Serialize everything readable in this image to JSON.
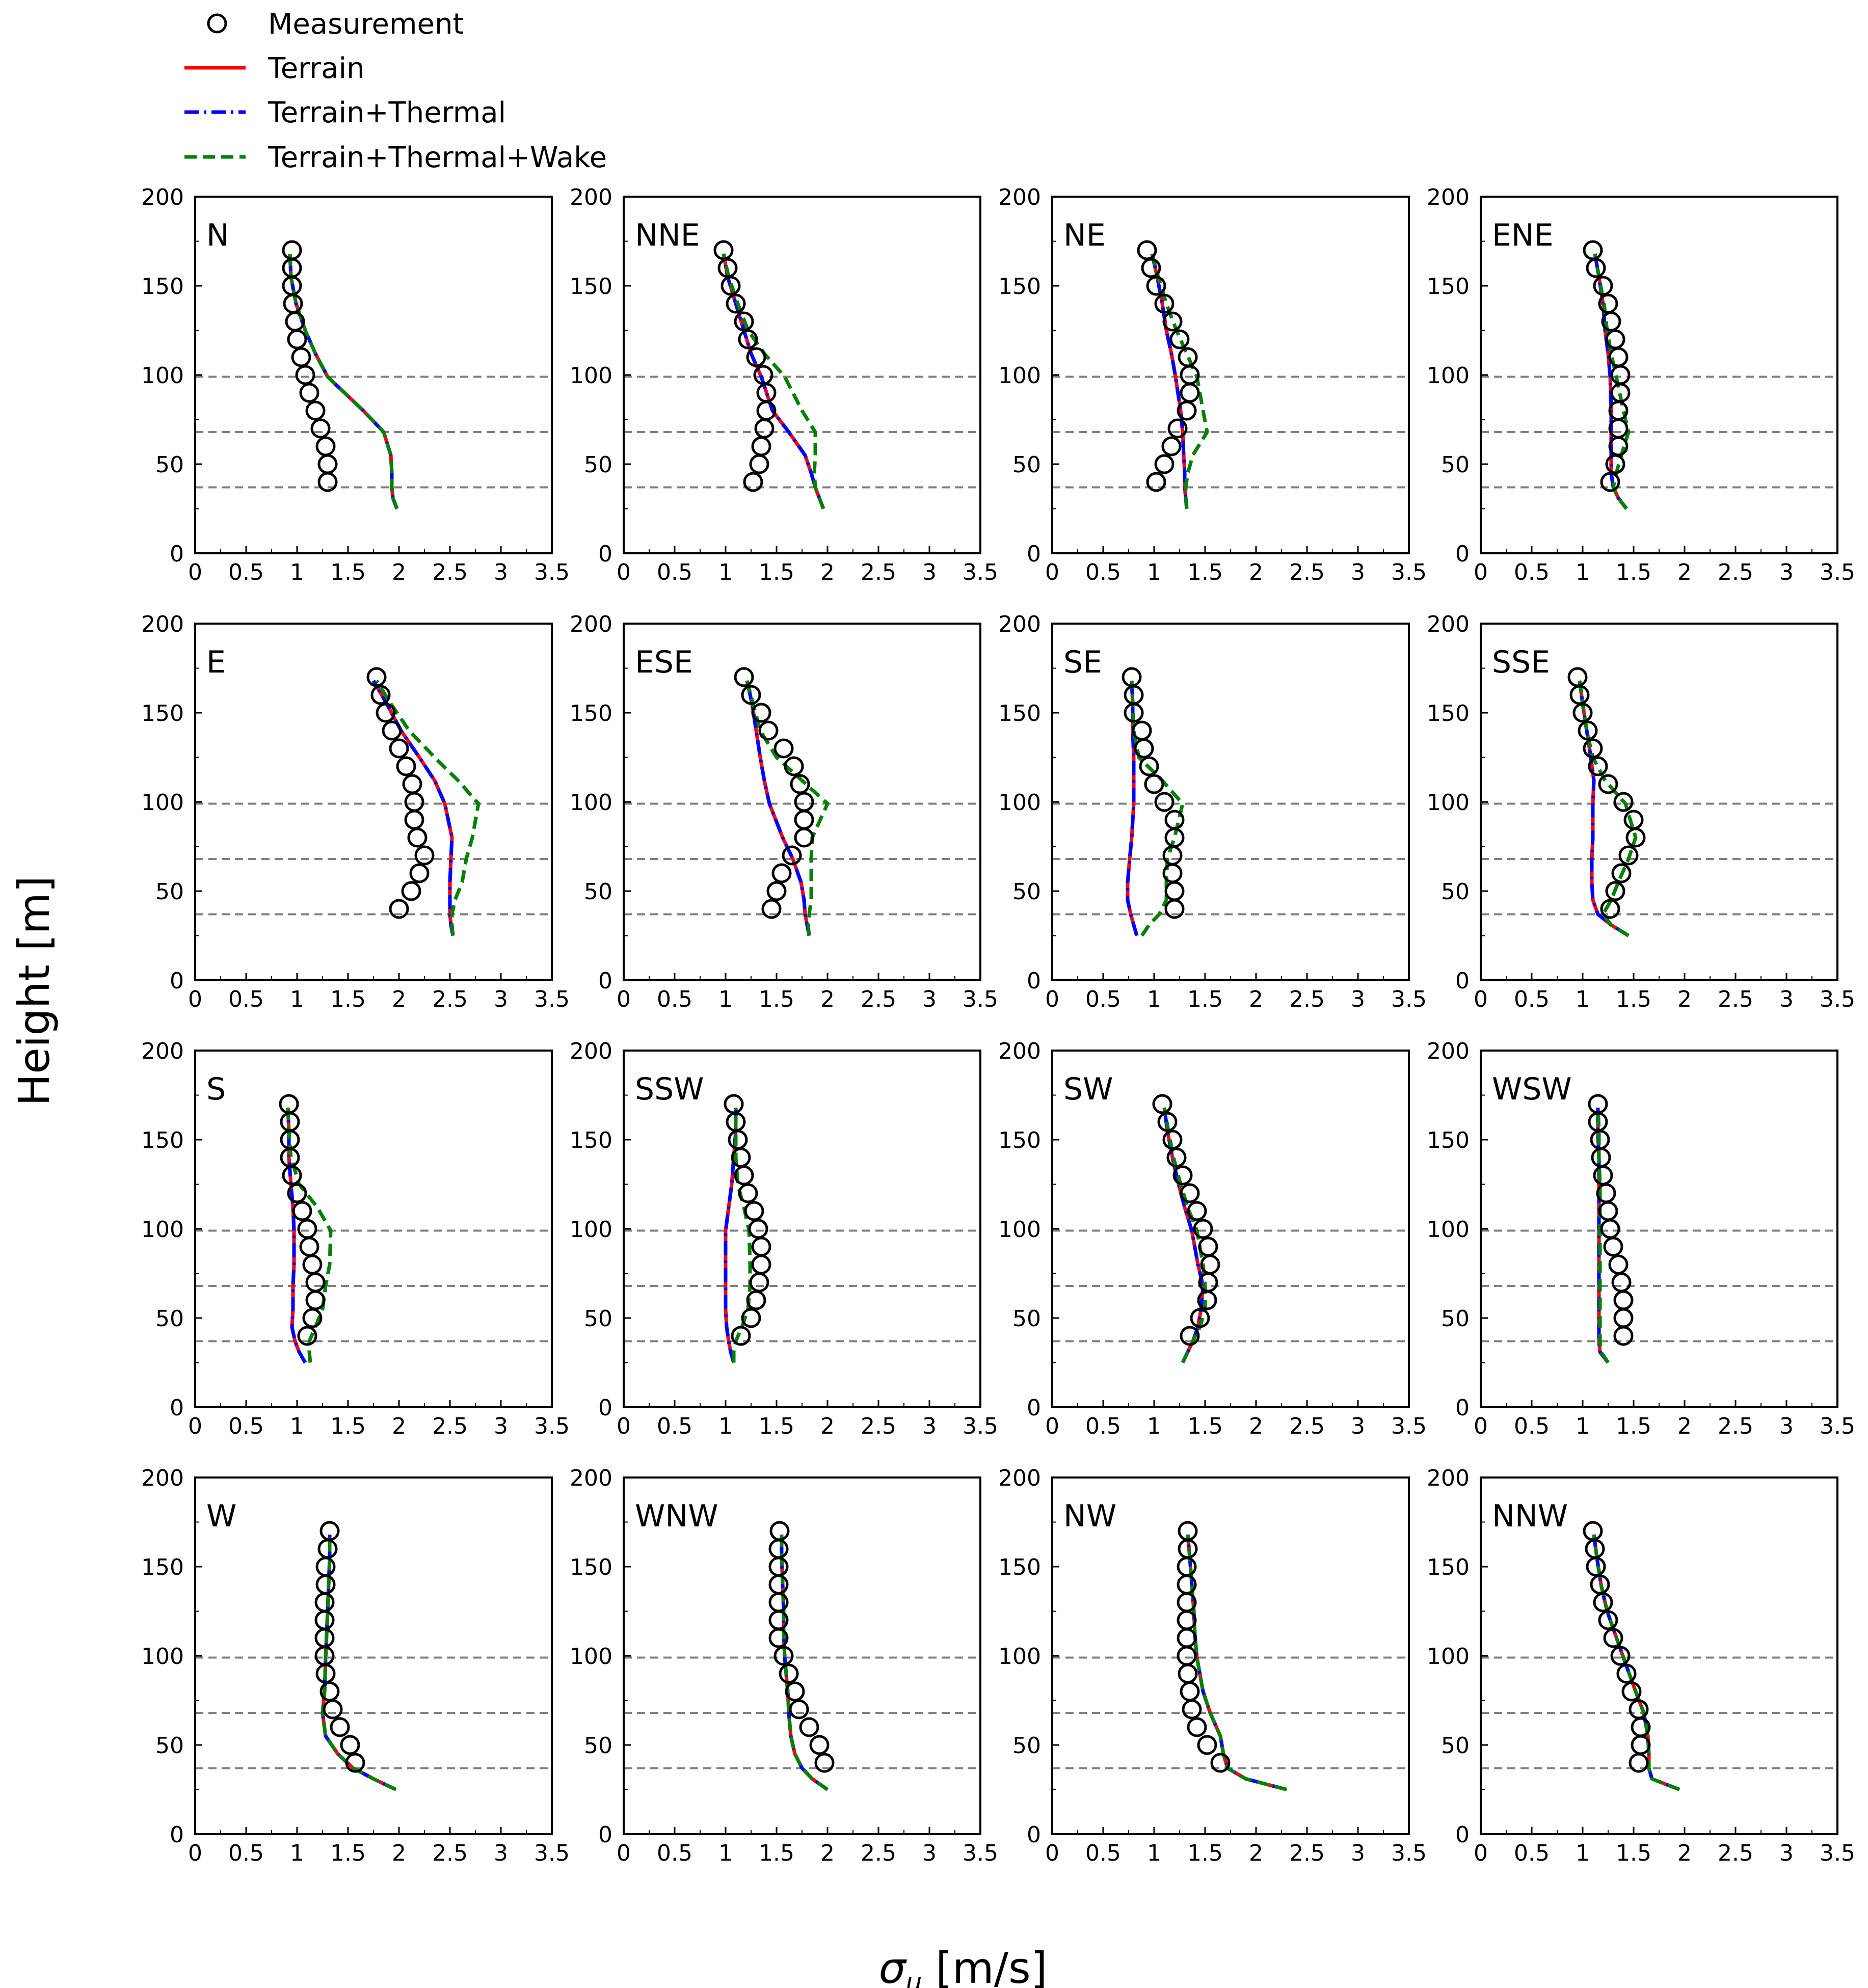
{
  "chart_data": {
    "type": "line",
    "xlabel": "σu [m/s]",
    "ylabel": "Height [m]",
    "xlim": [
      0,
      3.5
    ],
    "ylim": [
      0,
      200
    ],
    "xticks": [
      "0",
      "0.5",
      "1",
      "1.5",
      "2",
      "2.5",
      "3",
      "3.5"
    ],
    "yticks": [
      "0",
      "50",
      "100",
      "150",
      "200"
    ],
    "reference_heights": [
      37,
      68,
      99
    ],
    "legend": {
      "placement": "top-left",
      "entries": [
        {
          "key": "meas",
          "label": "Measurement",
          "style": "open-circle",
          "color": "#000000"
        },
        {
          "key": "terrain",
          "label": "Terrain",
          "style": "solid",
          "color": "#ff0000"
        },
        {
          "key": "thermal",
          "label": "Terrain+Thermal",
          "style": "dash-dot",
          "color": "#0000ff"
        },
        {
          "key": "wake",
          "label": "Terrain+Thermal+Wake",
          "style": "dashed",
          "color": "#008000"
        }
      ]
    },
    "meas_heights": [
      40,
      50,
      60,
      70,
      80,
      90,
      100,
      110,
      120,
      130,
      140,
      150,
      160,
      170
    ],
    "sim_heights": [
      25,
      31,
      37,
      45,
      55,
      68,
      80,
      99,
      112,
      125,
      140,
      155,
      168
    ],
    "panels": [
      {
        "label": "N",
        "meas": [
          1.3,
          1.3,
          1.28,
          1.23,
          1.18,
          1.12,
          1.08,
          1.04,
          1.0,
          0.98,
          0.96,
          0.95,
          0.95,
          0.95
        ],
        "terrain": [
          1.98,
          1.94,
          1.93,
          1.93,
          1.92,
          1.85,
          1.65,
          1.3,
          1.18,
          1.08,
          0.99,
          0.94,
          0.93
        ],
        "thermal": [
          1.98,
          1.94,
          1.93,
          1.93,
          1.92,
          1.85,
          1.65,
          1.3,
          1.18,
          1.08,
          0.99,
          0.94,
          0.93
        ],
        "wake": [
          1.98,
          1.94,
          1.93,
          1.93,
          1.92,
          1.85,
          1.65,
          1.3,
          1.18,
          1.08,
          0.99,
          0.94,
          0.93
        ]
      },
      {
        "label": "NNE",
        "meas": [
          1.27,
          1.33,
          1.35,
          1.38,
          1.4,
          1.4,
          1.37,
          1.3,
          1.22,
          1.18,
          1.1,
          1.05,
          1.02,
          0.98
        ],
        "terrain": [
          1.96,
          1.92,
          1.88,
          1.84,
          1.78,
          1.62,
          1.46,
          1.35,
          1.25,
          1.18,
          1.1,
          1.02,
          0.98
        ],
        "thermal": [
          1.96,
          1.92,
          1.88,
          1.84,
          1.78,
          1.62,
          1.46,
          1.35,
          1.25,
          1.18,
          1.1,
          1.02,
          0.98
        ],
        "wake": [
          1.96,
          1.92,
          1.88,
          1.87,
          1.88,
          1.88,
          1.75,
          1.58,
          1.38,
          1.22,
          1.12,
          1.03,
          0.98
        ]
      },
      {
        "label": "NE",
        "meas": [
          1.02,
          1.1,
          1.17,
          1.23,
          1.32,
          1.35,
          1.35,
          1.33,
          1.25,
          1.18,
          1.1,
          1.02,
          0.97,
          0.93
        ],
        "terrain": [
          1.32,
          1.31,
          1.3,
          1.3,
          1.29,
          1.28,
          1.26,
          1.21,
          1.17,
          1.12,
          1.08,
          1.03,
          0.98
        ],
        "thermal": [
          1.32,
          1.31,
          1.3,
          1.3,
          1.29,
          1.28,
          1.26,
          1.21,
          1.17,
          1.12,
          1.08,
          1.03,
          0.98
        ],
        "wake": [
          1.32,
          1.31,
          1.31,
          1.33,
          1.38,
          1.52,
          1.48,
          1.42,
          1.32,
          1.22,
          1.12,
          1.04,
          0.98
        ]
      },
      {
        "label": "ENE",
        "meas": [
          1.27,
          1.32,
          1.35,
          1.35,
          1.35,
          1.37,
          1.37,
          1.35,
          1.32,
          1.28,
          1.25,
          1.2,
          1.13,
          1.1
        ],
        "terrain": [
          1.43,
          1.35,
          1.3,
          1.28,
          1.28,
          1.28,
          1.28,
          1.27,
          1.25,
          1.22,
          1.2,
          1.16,
          1.12
        ],
        "thermal": [
          1.43,
          1.35,
          1.3,
          1.28,
          1.28,
          1.28,
          1.28,
          1.27,
          1.25,
          1.22,
          1.2,
          1.16,
          1.12
        ],
        "wake": [
          1.43,
          1.35,
          1.3,
          1.33,
          1.38,
          1.45,
          1.4,
          1.33,
          1.28,
          1.24,
          1.21,
          1.16,
          1.12
        ]
      },
      {
        "label": "E",
        "meas": [
          2.0,
          2.12,
          2.2,
          2.25,
          2.18,
          2.15,
          2.15,
          2.13,
          2.07,
          2.0,
          1.93,
          1.87,
          1.82,
          1.78
        ],
        "terrain": [
          2.53,
          2.51,
          2.5,
          2.5,
          2.5,
          2.51,
          2.52,
          2.45,
          2.35,
          2.2,
          2.02,
          1.88,
          1.75
        ],
        "thermal": [
          2.53,
          2.51,
          2.5,
          2.5,
          2.5,
          2.51,
          2.52,
          2.45,
          2.35,
          2.2,
          2.02,
          1.88,
          1.75
        ],
        "wake": [
          2.53,
          2.52,
          2.52,
          2.55,
          2.62,
          2.66,
          2.72,
          2.78,
          2.58,
          2.35,
          2.1,
          1.92,
          1.78
        ]
      },
      {
        "label": "ESE",
        "meas": [
          1.45,
          1.5,
          1.55,
          1.65,
          1.77,
          1.77,
          1.77,
          1.73,
          1.67,
          1.57,
          1.42,
          1.35,
          1.25,
          1.18
        ],
        "terrain": [
          1.82,
          1.8,
          1.78,
          1.77,
          1.74,
          1.66,
          1.56,
          1.43,
          1.38,
          1.34,
          1.3,
          1.26,
          1.21
        ],
        "thermal": [
          1.82,
          1.8,
          1.78,
          1.77,
          1.74,
          1.66,
          1.56,
          1.43,
          1.38,
          1.34,
          1.3,
          1.26,
          1.21
        ],
        "wake": [
          1.82,
          1.81,
          1.82,
          1.84,
          1.84,
          1.84,
          1.85,
          2.0,
          1.75,
          1.5,
          1.34,
          1.27,
          1.21
        ]
      },
      {
        "label": "SE",
        "meas": [
          1.2,
          1.2,
          1.18,
          1.18,
          1.2,
          1.2,
          1.1,
          1.0,
          0.95,
          0.9,
          0.88,
          0.8,
          0.8,
          0.78
        ],
        "terrain": [
          0.83,
          0.8,
          0.77,
          0.74,
          0.74,
          0.76,
          0.78,
          0.8,
          0.8,
          0.8,
          0.79,
          0.79,
          0.78
        ],
        "thermal": [
          0.83,
          0.8,
          0.77,
          0.74,
          0.74,
          0.76,
          0.78,
          0.8,
          0.8,
          0.8,
          0.79,
          0.79,
          0.78
        ],
        "wake": [
          0.88,
          0.95,
          1.05,
          1.12,
          1.12,
          1.13,
          1.2,
          1.28,
          1.08,
          0.85,
          0.8,
          0.79,
          0.78
        ]
      },
      {
        "label": "SSE",
        "meas": [
          1.27,
          1.32,
          1.38,
          1.45,
          1.52,
          1.5,
          1.4,
          1.25,
          1.15,
          1.1,
          1.05,
          1.0,
          0.97,
          0.95
        ],
        "terrain": [
          1.45,
          1.28,
          1.15,
          1.1,
          1.09,
          1.09,
          1.1,
          1.1,
          1.11,
          1.08,
          1.04,
          1.0,
          0.97
        ],
        "thermal": [
          1.45,
          1.28,
          1.15,
          1.1,
          1.09,
          1.09,
          1.1,
          1.1,
          1.11,
          1.08,
          1.04,
          1.0,
          0.97
        ],
        "wake": [
          1.45,
          1.28,
          1.2,
          1.28,
          1.35,
          1.45,
          1.52,
          1.42,
          1.22,
          1.1,
          1.04,
          1.0,
          0.97
        ]
      },
      {
        "label": "S",
        "meas": [
          1.1,
          1.15,
          1.18,
          1.18,
          1.15,
          1.12,
          1.1,
          1.05,
          1.0,
          0.95,
          0.93,
          0.93,
          0.93,
          0.92
        ],
        "terrain": [
          1.08,
          1.02,
          0.98,
          0.95,
          0.96,
          0.96,
          0.97,
          0.97,
          0.96,
          0.94,
          0.92,
          0.92,
          0.91
        ],
        "thermal": [
          1.08,
          1.02,
          0.98,
          0.95,
          0.96,
          0.96,
          0.97,
          0.97,
          0.96,
          0.94,
          0.92,
          0.92,
          0.91
        ],
        "wake": [
          1.13,
          1.12,
          1.12,
          1.18,
          1.25,
          1.28,
          1.32,
          1.33,
          1.2,
          1.02,
          0.94,
          0.92,
          0.91
        ]
      },
      {
        "label": "SSW",
        "meas": [
          1.15,
          1.25,
          1.3,
          1.33,
          1.35,
          1.35,
          1.32,
          1.28,
          1.22,
          1.18,
          1.15,
          1.12,
          1.1,
          1.08
        ],
        "terrain": [
          1.08,
          1.05,
          1.03,
          1.01,
          1.0,
          1.0,
          1.0,
          1.0,
          1.03,
          1.06,
          1.08,
          1.1,
          1.1
        ],
        "thermal": [
          1.08,
          1.05,
          1.03,
          1.01,
          1.0,
          1.0,
          1.0,
          1.0,
          1.03,
          1.06,
          1.08,
          1.1,
          1.1
        ],
        "wake": [
          1.08,
          1.08,
          1.1,
          1.16,
          1.22,
          1.24,
          1.24,
          1.23,
          1.18,
          1.12,
          1.1,
          1.1,
          1.1
        ]
      },
      {
        "label": "SW",
        "meas": [
          1.35,
          1.45,
          1.52,
          1.53,
          1.55,
          1.53,
          1.48,
          1.42,
          1.35,
          1.28,
          1.22,
          1.18,
          1.13,
          1.08
        ],
        "terrain": [
          1.28,
          1.33,
          1.38,
          1.43,
          1.46,
          1.48,
          1.43,
          1.37,
          1.3,
          1.24,
          1.18,
          1.13,
          1.1
        ],
        "thermal": [
          1.28,
          1.33,
          1.38,
          1.43,
          1.46,
          1.48,
          1.43,
          1.37,
          1.3,
          1.24,
          1.18,
          1.13,
          1.1
        ],
        "wake": [
          1.28,
          1.33,
          1.38,
          1.45,
          1.5,
          1.5,
          1.48,
          1.42,
          1.33,
          1.26,
          1.19,
          1.14,
          1.1
        ]
      },
      {
        "label": "WSW",
        "meas": [
          1.4,
          1.4,
          1.4,
          1.38,
          1.35,
          1.3,
          1.27,
          1.25,
          1.23,
          1.2,
          1.18,
          1.17,
          1.15,
          1.15
        ],
        "terrain": [
          1.25,
          1.17,
          1.16,
          1.16,
          1.16,
          1.16,
          1.16,
          1.16,
          1.16,
          1.16,
          1.16,
          1.15,
          1.15
        ],
        "thermal": [
          1.25,
          1.17,
          1.16,
          1.16,
          1.16,
          1.16,
          1.16,
          1.16,
          1.16,
          1.16,
          1.16,
          1.15,
          1.15
        ],
        "wake": [
          1.25,
          1.18,
          1.17,
          1.17,
          1.17,
          1.17,
          1.17,
          1.17,
          1.17,
          1.17,
          1.16,
          1.16,
          1.15
        ]
      },
      {
        "label": "W",
        "meas": [
          1.57,
          1.52,
          1.42,
          1.35,
          1.32,
          1.28,
          1.27,
          1.27,
          1.27,
          1.27,
          1.28,
          1.28,
          1.3,
          1.32
        ],
        "terrain": [
          1.97,
          1.75,
          1.55,
          1.4,
          1.28,
          1.25,
          1.27,
          1.28,
          1.29,
          1.3,
          1.31,
          1.32,
          1.32
        ],
        "thermal": [
          1.97,
          1.75,
          1.55,
          1.4,
          1.28,
          1.25,
          1.27,
          1.28,
          1.29,
          1.3,
          1.31,
          1.32,
          1.32
        ],
        "wake": [
          1.97,
          1.75,
          1.55,
          1.4,
          1.28,
          1.25,
          1.27,
          1.28,
          1.29,
          1.3,
          1.31,
          1.32,
          1.32
        ]
      },
      {
        "label": "WNW",
        "meas": [
          1.97,
          1.92,
          1.82,
          1.72,
          1.68,
          1.62,
          1.57,
          1.52,
          1.52,
          1.52,
          1.52,
          1.52,
          1.52,
          1.53
        ],
        "terrain": [
          2.0,
          1.85,
          1.75,
          1.68,
          1.64,
          1.62,
          1.61,
          1.58,
          1.57,
          1.57,
          1.56,
          1.55,
          1.55
        ],
        "thermal": [
          2.0,
          1.85,
          1.75,
          1.68,
          1.64,
          1.62,
          1.61,
          1.58,
          1.57,
          1.57,
          1.56,
          1.55,
          1.55
        ],
        "wake": [
          2.0,
          1.85,
          1.75,
          1.68,
          1.64,
          1.62,
          1.61,
          1.58,
          1.57,
          1.57,
          1.56,
          1.55,
          1.55
        ]
      },
      {
        "label": "NW",
        "meas": [
          1.65,
          1.52,
          1.42,
          1.37,
          1.35,
          1.33,
          1.32,
          1.32,
          1.32,
          1.32,
          1.32,
          1.32,
          1.33,
          1.33
        ],
        "terrain": [
          2.3,
          1.9,
          1.72,
          1.68,
          1.65,
          1.55,
          1.48,
          1.42,
          1.4,
          1.39,
          1.37,
          1.35,
          1.33
        ],
        "thermal": [
          2.3,
          1.9,
          1.72,
          1.68,
          1.65,
          1.55,
          1.48,
          1.42,
          1.4,
          1.39,
          1.37,
          1.35,
          1.33
        ],
        "wake": [
          2.3,
          1.9,
          1.72,
          1.68,
          1.65,
          1.55,
          1.48,
          1.42,
          1.4,
          1.39,
          1.37,
          1.35,
          1.33
        ]
      },
      {
        "label": "NNW",
        "meas": [
          1.55,
          1.57,
          1.57,
          1.55,
          1.48,
          1.43,
          1.37,
          1.3,
          1.25,
          1.2,
          1.17,
          1.13,
          1.12,
          1.1
        ],
        "terrain": [
          1.95,
          1.68,
          1.65,
          1.65,
          1.64,
          1.6,
          1.52,
          1.4,
          1.32,
          1.24,
          1.18,
          1.14,
          1.11
        ],
        "thermal": [
          1.95,
          1.68,
          1.65,
          1.65,
          1.64,
          1.6,
          1.52,
          1.4,
          1.32,
          1.24,
          1.18,
          1.14,
          1.11
        ],
        "wake": [
          1.95,
          1.68,
          1.65,
          1.65,
          1.64,
          1.6,
          1.52,
          1.4,
          1.32,
          1.24,
          1.18,
          1.14,
          1.11
        ]
      }
    ]
  }
}
